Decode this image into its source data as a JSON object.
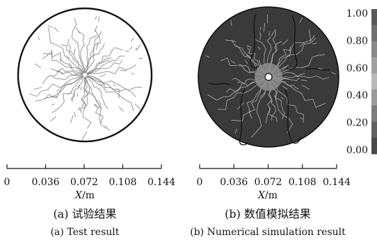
{
  "axes": [
    {
      "id": "a",
      "xlabel_var": "X",
      "xlabel_unit": "/m",
      "ticks": [
        "0",
        "0.036",
        "0.072",
        "0.108",
        "0.144"
      ],
      "caption_cn": "(a) 试验结果",
      "caption_en": "(a) Test result"
    },
    {
      "id": "b",
      "xlabel_var": "X",
      "xlabel_unit": "/m",
      "ticks": [
        "0",
        "0.036",
        "0.072",
        "0.108",
        "0.144"
      ],
      "caption_cn": "(b) 数值模拟结果",
      "caption_en": "(b) Numerical simulation result"
    }
  ],
  "colorbar": {
    "labels": [
      "1.00",
      "0.80",
      "0.60",
      "0.40",
      "0.20",
      "0.00"
    ],
    "colors": [
      "#5a5a5a",
      "#707070",
      "#888888",
      "#a0a0a0",
      "#b8b8b8",
      "#9a9a9a",
      "#7c7c7c",
      "#606060",
      "#494949"
    ]
  },
  "colors": {
    "disc_b_fill": "#3a3a3a",
    "crack_a": "#8a8a8a",
    "crack_b": "#b0b0b0",
    "contour_b": "#111111"
  }
}
